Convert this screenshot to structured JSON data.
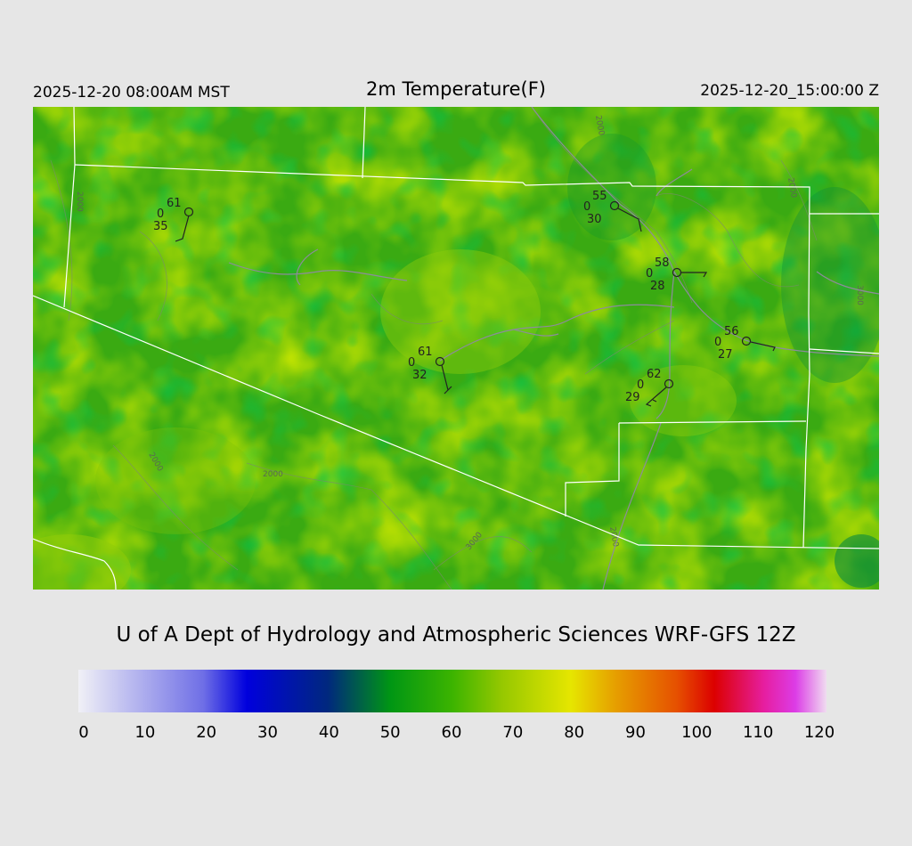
{
  "header": {
    "local_time": "2025-12-20 08:00AM MST",
    "title": "2m Temperature(F)",
    "utc_time": "2025-12-20_15:00:00 Z"
  },
  "credit": "U of A Dept of Hydrology and Atmospheric Sciences WRF-GFS 12Z",
  "colorbar": {
    "ticks": [
      "0",
      "10",
      "20",
      "30",
      "40",
      "50",
      "60",
      "70",
      "80",
      "90",
      "100",
      "110",
      "120"
    ],
    "stops": [
      {
        "t": 0,
        "color": "#f0f0f6"
      },
      {
        "t": 20,
        "color": "#6f6fe6"
      },
      {
        "t": 27,
        "color": "#0000dd"
      },
      {
        "t": 40,
        "color": "#00287e"
      },
      {
        "t": 50,
        "color": "#009614"
      },
      {
        "t": 60,
        "color": "#3cb400"
      },
      {
        "t": 68,
        "color": "#96c800"
      },
      {
        "t": 79,
        "color": "#e6e600"
      },
      {
        "t": 86,
        "color": "#e6a000"
      },
      {
        "t": 96,
        "color": "#e65000"
      },
      {
        "t": 102,
        "color": "#dc0000"
      },
      {
        "t": 110,
        "color": "#e61ea0"
      },
      {
        "t": 115,
        "color": "#dc3ce6"
      },
      {
        "t": 120,
        "color": "#f0dcf0"
      }
    ]
  },
  "contour_labels": [
    "2000",
    "2000",
    "3000",
    "2000",
    "3000",
    "2000",
    "2000",
    "2000"
  ],
  "stations": [
    {
      "temp": "61",
      "cloud": "0",
      "dew": "35"
    },
    {
      "temp": "55",
      "cloud": "0",
      "dew": "30"
    },
    {
      "temp": "58",
      "cloud": "0",
      "dew": "28"
    },
    {
      "temp": "61",
      "cloud": "0",
      "dew": "32"
    },
    {
      "temp": "56",
      "cloud": "0",
      "dew": "27"
    },
    {
      "temp": "62",
      "cloud": "0",
      "dew": "29"
    }
  ]
}
